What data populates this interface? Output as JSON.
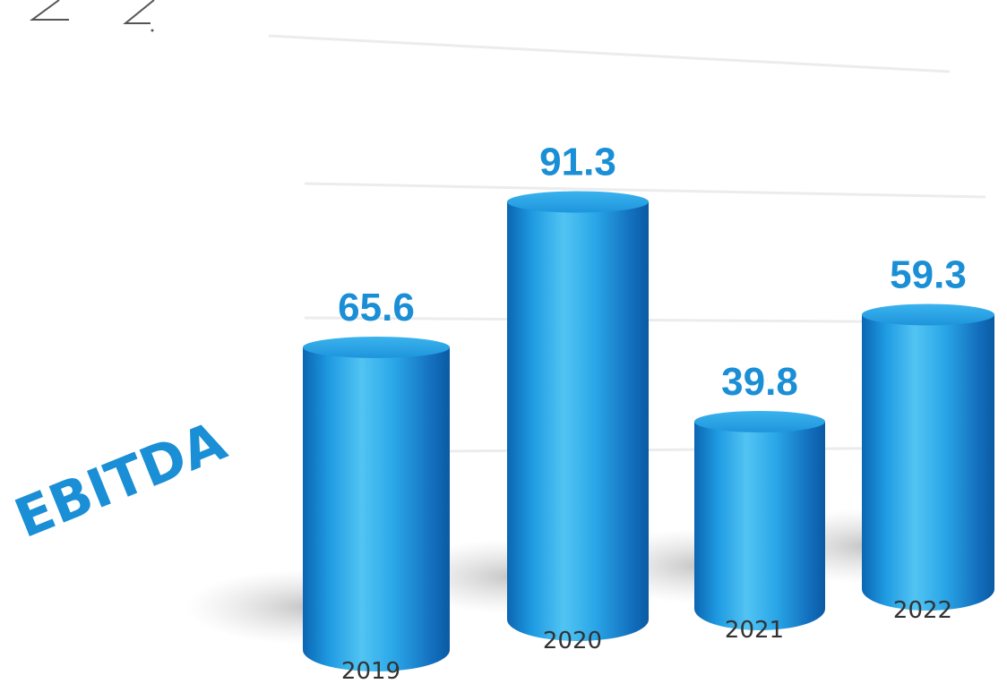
{
  "colors": {
    "accent": "#1a8fd6",
    "bar_light": "#5cc8f4",
    "bar_mid": "#1c9be0",
    "bar_dark": "#0a5fa8",
    "shadow": "#c8c8c8",
    "grid": "#ececec"
  },
  "chart_data": {
    "type": "bar",
    "title": "EBITDA",
    "xlabel": "",
    "ylabel": "",
    "categories": [
      "2019",
      "2020",
      "2021",
      "2022"
    ],
    "values": [
      65.6,
      91.3,
      39.8,
      59.3
    ],
    "value_labels": [
      "65.6",
      "91.3",
      "39.8",
      "59.3"
    ],
    "ylim": [
      0,
      100
    ],
    "grid": true,
    "legend": "none",
    "style": "3d-cylinder"
  }
}
